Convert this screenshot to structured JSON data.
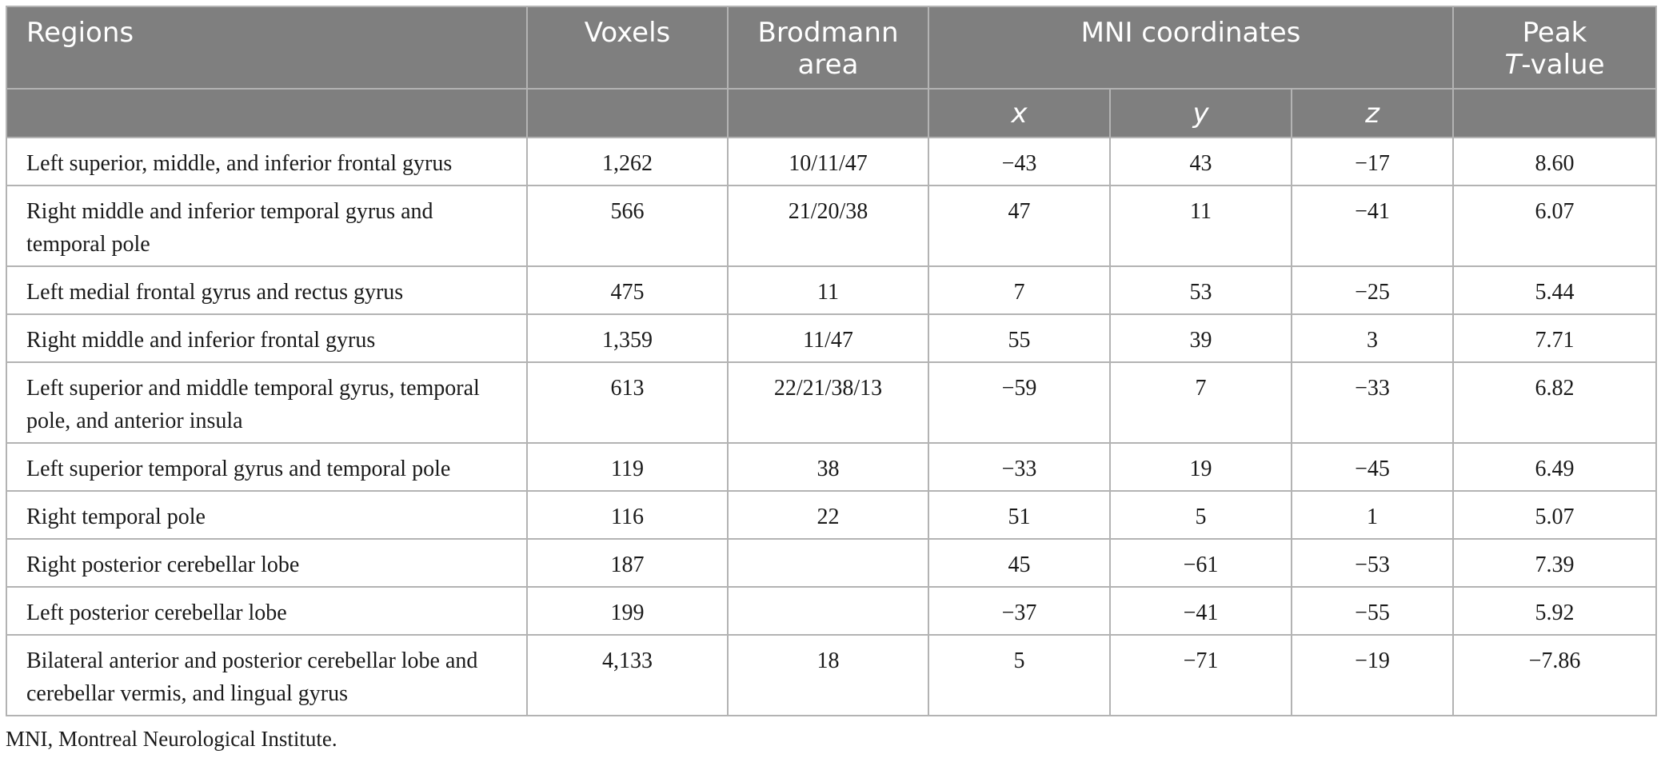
{
  "table": {
    "headers": {
      "regions": "Regions",
      "voxels": "Voxels",
      "brodmann_line1": "Brodmann",
      "brodmann_line2": "area",
      "mni": "MNI coordinates",
      "peak_line1": "Peak",
      "peak_t": "T",
      "peak_suffix": "-value",
      "x": "x",
      "y": "y",
      "z": "z"
    },
    "rows": [
      {
        "region": "Left superior, middle, and inferior frontal gyrus",
        "voxels": "1,262",
        "ba": "10/11/47",
        "x": "−43",
        "y": "43",
        "z": "−17",
        "t": "8.60"
      },
      {
        "region": "Right middle and inferior temporal gyrus and temporal pole",
        "voxels": "566",
        "ba": "21/20/38",
        "x": "47",
        "y": "11",
        "z": "−41",
        "t": "6.07"
      },
      {
        "region": "Left medial frontal gyrus and rectus gyrus",
        "voxels": "475",
        "ba": "11",
        "x": "7",
        "y": "53",
        "z": "−25",
        "t": "5.44"
      },
      {
        "region": "Right middle and inferior frontal gyrus",
        "voxels": "1,359",
        "ba": "11/47",
        "x": "55",
        "y": "39",
        "z": "3",
        "t": "7.71"
      },
      {
        "region": "Left superior and middle temporal gyrus, temporal pole, and anterior insula",
        "voxels": "613",
        "ba": "22/21/38/13",
        "x": "−59",
        "y": "7",
        "z": "−33",
        "t": "6.82"
      },
      {
        "region": "Left superior temporal gyrus and temporal pole",
        "voxels": "119",
        "ba": "38",
        "x": "−33",
        "y": "19",
        "z": "−45",
        "t": "6.49"
      },
      {
        "region": "Right temporal pole",
        "voxels": "116",
        "ba": "22",
        "x": "51",
        "y": "5",
        "z": "1",
        "t": "5.07"
      },
      {
        "region": "Right posterior cerebellar lobe",
        "voxels": "187",
        "ba": "",
        "x": "45",
        "y": "−61",
        "z": "−53",
        "t": "7.39"
      },
      {
        "region": "Left posterior cerebellar lobe",
        "voxels": "199",
        "ba": "",
        "x": "−37",
        "y": "−41",
        "z": "−55",
        "t": "5.92"
      },
      {
        "region": "Bilateral anterior and posterior cerebellar lobe and cerebellar vermis, and lingual gyrus",
        "voxels": "4,133",
        "ba": "18",
        "x": "5",
        "y": "−71",
        "z": "−19",
        "t": "−7.86"
      }
    ]
  },
  "footnote": "MNI, Montreal Neurological Institute."
}
